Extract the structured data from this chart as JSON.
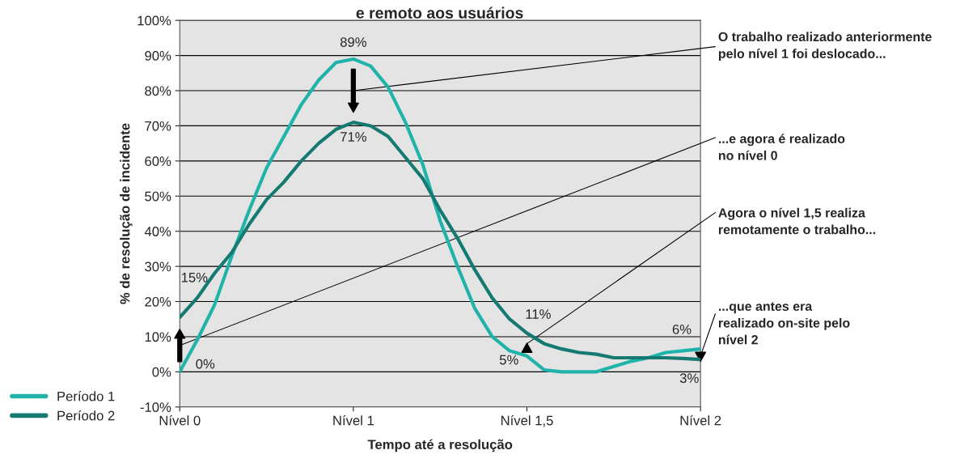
{
  "chart_data": {
    "type": "line",
    "title": "e remoto aos usuários",
    "xlabel": "Tempo até a resolução",
    "ylabel": "% de resolução de incidente",
    "categories": [
      "Nível 0",
      null,
      null,
      null,
      null,
      null,
      null,
      null,
      null,
      null,
      "Nível 1",
      null,
      null,
      null,
      null,
      null,
      null,
      null,
      null,
      null,
      "Nível 1,5",
      null,
      null,
      null,
      null,
      null,
      null,
      null,
      null,
      null,
      "Nível 2"
    ],
    "ylim": [
      -10,
      100
    ],
    "yticks": [
      {
        "value": -10,
        "label": "-10%"
      },
      {
        "value": 0,
        "label": "0%"
      },
      {
        "value": 10,
        "label": "10%"
      },
      {
        "value": 20,
        "label": "20%"
      },
      {
        "value": 30,
        "label": "30%"
      },
      {
        "value": 40,
        "label": "40%"
      },
      {
        "value": 50,
        "label": "50%"
      },
      {
        "value": 60,
        "label": "60%"
      },
      {
        "value": 70,
        "label": "70%"
      },
      {
        "value": 80,
        "label": "80%"
      },
      {
        "value": 90,
        "label": "90%"
      },
      {
        "value": 100,
        "label": "100%"
      }
    ],
    "grid": "y",
    "legend": "bottom left",
    "series": [
      {
        "name": "Período 1",
        "color": "#1fb3aa",
        "values": [
          0,
          9,
          19,
          33,
          46,
          58,
          67,
          76,
          83,
          88,
          89,
          87,
          81,
          71,
          59,
          43,
          30,
          18,
          10,
          6,
          4.5,
          0.5,
          0,
          0,
          0,
          1.5,
          3,
          4,
          5.5,
          6,
          6.5
        ]
      },
      {
        "name": "Período 2",
        "color": "#157a72",
        "values": [
          15.5,
          21,
          28,
          34,
          42,
          49,
          54,
          60,
          65,
          69,
          71,
          70,
          67,
          61,
          55,
          46,
          38,
          29,
          21,
          15,
          11,
          8,
          6.5,
          5.5,
          5,
          4,
          4,
          4,
          4,
          3.8,
          3.5
        ]
      }
    ],
    "annotations": [
      {
        "text": "0%",
        "x": "Nível 0",
        "y": 0
      },
      {
        "text": "15%",
        "x": "Nível 0",
        "y": 15
      },
      {
        "text": "89%",
        "x": "Nível 1",
        "y": 89
      },
      {
        "text": "71%",
        "x": "Nível 1",
        "y": 71
      },
      {
        "text": "5%",
        "x": "Nível 1,5",
        "y": 5
      },
      {
        "text": "11%",
        "x": "Nível 1,5",
        "y": 11
      },
      {
        "text": "6%",
        "x": "Nível 2",
        "y": 6
      },
      {
        "text": "3%",
        "x": "Nível 2",
        "y": 3
      },
      "O trabalho realizado anteriormente\npelo nível 1 foi deslocado...",
      "...e agora é realizado\nno nível 0",
      "Agora o nível 1,5 realiza\nremotamente o trabalho...",
      "...que antes era\nrealizado on-site pelo\nnível 2"
    ]
  }
}
